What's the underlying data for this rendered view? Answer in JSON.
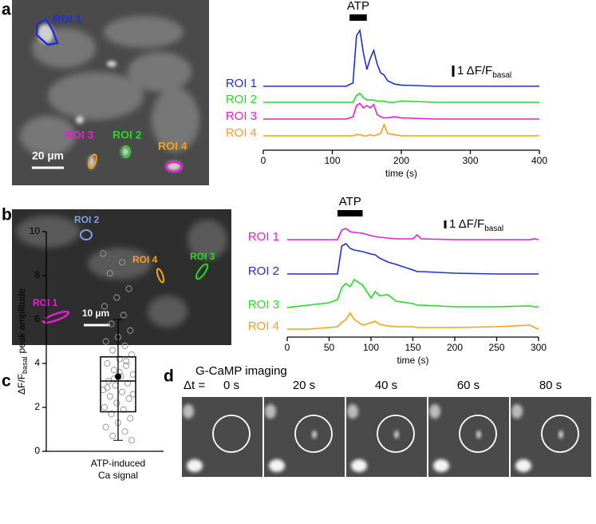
{
  "panel_letters": [
    "a",
    "b",
    "c",
    "d"
  ],
  "chart_data": [
    {
      "type": "line",
      "xlabel": "time (s)",
      "annotation": "ATP",
      "stimulus": [
        125,
        150
      ],
      "scale_label": "1 ΔF/F",
      "scale_sub": "basal",
      "scale_value": 1,
      "xlim": [
        0,
        400
      ],
      "xticks": [
        0,
        100,
        200,
        300,
        400
      ],
      "x": [
        0,
        50,
        100,
        120,
        130,
        135,
        140,
        145,
        150,
        155,
        160,
        165,
        170,
        175,
        180,
        190,
        200,
        250,
        300,
        350,
        400
      ],
      "series": [
        {
          "name": "ROI 1",
          "color": "#1f2fd6",
          "values": [
            0,
            0,
            0,
            0,
            0.3,
            4.5,
            5,
            3,
            1.5,
            2.5,
            3.2,
            2,
            1.2,
            1,
            0.5,
            0.2,
            0.1,
            0,
            0,
            0,
            0
          ]
        },
        {
          "name": "ROI 2",
          "color": "#22dd22",
          "values": [
            0,
            0,
            0,
            0,
            0,
            0.6,
            0.8,
            0.4,
            0.2,
            0.2,
            0.2,
            0.1,
            0.1,
            0.1,
            0,
            0,
            0.1,
            0,
            0,
            0,
            0
          ]
        },
        {
          "name": "ROI 3",
          "color": "#e81ed0",
          "values": [
            0,
            0,
            0,
            0,
            0.2,
            1.2,
            1.4,
            1,
            1.2,
            1,
            1.3,
            0.4,
            0.2,
            0.1,
            0.1,
            0.2,
            0.1,
            0,
            0,
            0,
            0
          ]
        },
        {
          "name": "ROI 4",
          "color": "#f5a21a",
          "values": [
            0,
            0,
            0,
            0,
            0,
            0.1,
            0.1,
            0,
            0,
            0.1,
            0,
            0.1,
            0.2,
            1,
            0.2,
            0.1,
            0,
            0,
            0,
            0,
            0
          ]
        }
      ],
      "image_scale": "20 µm"
    },
    {
      "type": "line",
      "xlabel": "time (s)",
      "annotation": "ATP",
      "stimulus": [
        60,
        90
      ],
      "scale_label": "1 ΔF/F",
      "scale_sub": "basal",
      "scale_value": 1,
      "xlim": [
        0,
        300
      ],
      "xticks": [
        0,
        50,
        100,
        150,
        200,
        250,
        300
      ],
      "x": [
        0,
        25,
        50,
        60,
        65,
        70,
        75,
        80,
        90,
        100,
        105,
        110,
        120,
        130,
        150,
        155,
        160,
        200,
        250,
        290,
        295,
        300
      ],
      "series": [
        {
          "name": "ROI 1",
          "color": "#e81ed0",
          "values": [
            0,
            0,
            0,
            0,
            1.2,
            1.4,
            1,
            0.9,
            0.8,
            0.5,
            0.4,
            0.3,
            0.2,
            0.1,
            0.1,
            0.6,
            0.1,
            0,
            0,
            0,
            0.1,
            0
          ]
        },
        {
          "name": "ROI 2",
          "color": "#1f2fd6",
          "values": [
            0,
            0,
            0,
            0,
            3.5,
            3.8,
            3.2,
            3,
            2.8,
            2.5,
            2.4,
            2,
            1.5,
            1.2,
            0.5,
            0.3,
            0.3,
            0.1,
            0,
            0,
            0,
            0
          ]
        },
        {
          "name": "ROI 3",
          "color": "#22dd22",
          "values": [
            0,
            0.3,
            0.6,
            1,
            2.5,
            3,
            2.6,
            3.5,
            2.8,
            1.2,
            2,
            1.5,
            1.6,
            0.8,
            0.5,
            0.3,
            0.3,
            0.1,
            0.1,
            0.2,
            0.1,
            0.1
          ]
        },
        {
          "name": "ROI 4",
          "color": "#f5a21a",
          "values": [
            0,
            0,
            0.2,
            0.3,
            0.8,
            1.2,
            2,
            1.2,
            0.5,
            0.8,
            1,
            0.6,
            0.4,
            0.3,
            0.3,
            0.2,
            0.2,
            0.2,
            0.3,
            0.5,
            0.2,
            0
          ]
        }
      ],
      "image_scale": "10 µm"
    },
    {
      "type": "box",
      "ylabel": "ΔF/F",
      "ylabel_sub": "basal",
      "ylabel_rest": "peak amplitude",
      "xlabel_lines": [
        "ATP-induced",
        "Ca signal"
      ],
      "ylim": [
        0,
        10
      ],
      "yticks": [
        0,
        2,
        4,
        6,
        8,
        10
      ],
      "whisker_low": 0.5,
      "q1": 1.8,
      "median": 3.2,
      "q3": 4.3,
      "whisker_high": 6,
      "mean": 3.4,
      "points": [
        9,
        8.6,
        8.1,
        7.4,
        7,
        6.6,
        6.2,
        5.8,
        5.5,
        5.2,
        5,
        4.8,
        4.6,
        4.4,
        4.2,
        4,
        3.9,
        3.7,
        3.5,
        3.4,
        3.2,
        3.1,
        3,
        2.8,
        2.7,
        2.5,
        2.4,
        2.2,
        2,
        1.9,
        1.7,
        1.5,
        1.3,
        1.1,
        0.9,
        0.7,
        0.5,
        3.6,
        2.9,
        4.1,
        3.3,
        2.6
      ]
    }
  ],
  "panel_d": {
    "title": "G-CaMP imaging",
    "delta_label": "Δt =",
    "times": [
      "0 s",
      "20 s",
      "40 s",
      "60 s",
      "80 s"
    ]
  }
}
